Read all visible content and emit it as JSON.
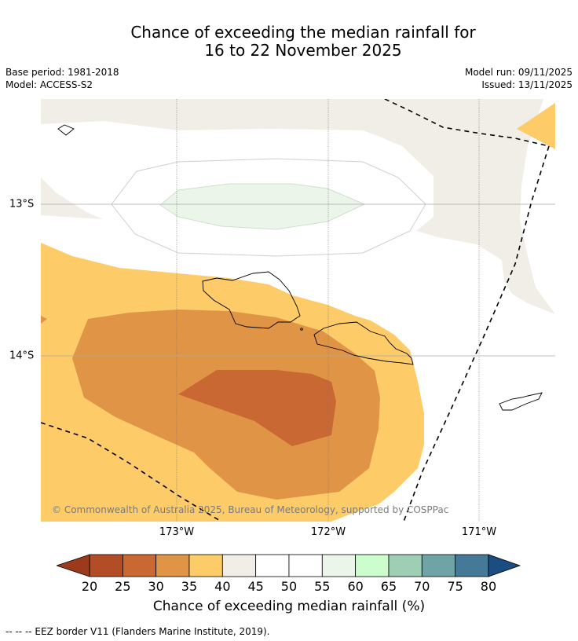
{
  "header": {
    "title_line1": "Chance of exceeding the median rainfall for",
    "title_line2": "16 to 22 November 2025",
    "base_period": "Base period: 1981-2018",
    "model": "Model: ACCESS-S2",
    "model_run": "Model run: 09/11/2025",
    "issued": "Issued: 13/11/2025"
  },
  "map": {
    "copyright": "© Commonwealth of Australia 2025, Bureau of Meteorology, supported by COSPPac",
    "lat_labels": [
      "13°S",
      "14°S"
    ],
    "lon_labels": [
      "173°W",
      "172°W",
      "171°W"
    ],
    "category_colors": {
      "below_20": "#9c3a1c",
      "20_25": "#b34d25",
      "25_30": "#c96832",
      "30_35": "#e09445",
      "35_40": "#fdcb68",
      "40_45": "#f1ede7",
      "45_55": "#ffffff",
      "55_60": "#ebf5ea",
      "60_65": "#ccfdcc",
      "65_70": "#9ecfb5",
      "70_75": "#6fa3a6",
      "75_80": "#447a98",
      "above_80": "#1b4c82"
    }
  },
  "colorbar": {
    "ticks": [
      "20",
      "25",
      "30",
      "35",
      "40",
      "45",
      "50",
      "55",
      "60",
      "65",
      "70",
      "75",
      "80"
    ],
    "colors": [
      "#b34d25",
      "#c96832",
      "#e09445",
      "#fdcb68",
      "#f1ede7",
      "#ffffff",
      "#ffffff",
      "#ebf5ea",
      "#ccfdcc",
      "#9ecfb5",
      "#6fa3a6",
      "#447a98"
    ],
    "low_color": "#9c3a1c",
    "high_color": "#1b4c82",
    "title": "Chance of exceeding median rainfall (%)"
  },
  "footnote": "--  --  -- EEZ border V11 (Flanders Marine Institute, 2019)."
}
